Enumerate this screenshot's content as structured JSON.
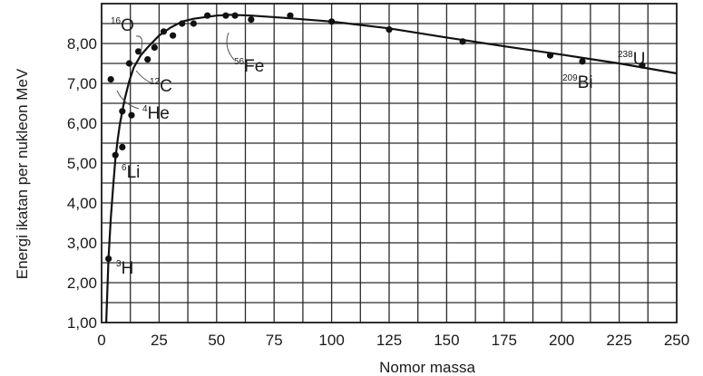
{
  "chart_data": {
    "type": "scatter",
    "title": "",
    "xlabel": "Nomor massa",
    "ylabel": "Energi ikatan per nukleon MeV",
    "xlim": [
      0,
      250
    ],
    "ylim": [
      1,
      9
    ],
    "grid": true,
    "x_ticks": [
      "0",
      "25",
      "50",
      "75",
      "100",
      "125",
      "150",
      "175",
      "200",
      "225",
      "250"
    ],
    "y_ticks": [
      "1,00",
      "2,00",
      "3,00",
      "4,00",
      "5,00",
      "6,00",
      "7,00",
      "8,00"
    ],
    "series": [
      {
        "points": [
          {
            "x": 3,
            "y": 2.6
          },
          {
            "x": 6,
            "y": 5.2
          },
          {
            "x": 9,
            "y": 5.4
          },
          {
            "x": 4,
            "y": 7.1
          },
          {
            "x": 9,
            "y": 6.3
          },
          {
            "x": 13,
            "y": 6.2
          },
          {
            "x": 12,
            "y": 7.5
          },
          {
            "x": 16,
            "y": 7.8
          },
          {
            "x": 20,
            "y": 7.6
          },
          {
            "x": 23,
            "y": 7.9
          },
          {
            "x": 27,
            "y": 8.3
          },
          {
            "x": 31,
            "y": 8.2
          },
          {
            "x": 35,
            "y": 8.5
          },
          {
            "x": 40,
            "y": 8.5
          },
          {
            "x": 46,
            "y": 8.7
          },
          {
            "x": 54,
            "y": 8.7
          },
          {
            "x": 58,
            "y": 8.7
          },
          {
            "x": 65,
            "y": 8.6
          },
          {
            "x": 82,
            "y": 8.7
          },
          {
            "x": 100,
            "y": 8.55
          },
          {
            "x": 125,
            "y": 8.35
          },
          {
            "x": 157,
            "y": 8.05
          },
          {
            "x": 195,
            "y": 7.7
          },
          {
            "x": 209,
            "y": 7.55
          },
          {
            "x": 235,
            "y": 7.45
          }
        ]
      }
    ],
    "curve": [
      [
        2,
        1.0
      ],
      [
        3,
        2.6
      ],
      [
        4,
        3.6
      ],
      [
        5,
        4.4
      ],
      [
        6,
        5.1
      ],
      [
        7,
        5.6
      ],
      [
        8,
        6.0
      ],
      [
        10,
        6.6
      ],
      [
        12,
        7.05
      ],
      [
        14,
        7.4
      ],
      [
        17,
        7.7
      ],
      [
        20,
        7.9
      ],
      [
        25,
        8.2
      ],
      [
        30,
        8.4
      ],
      [
        35,
        8.55
      ],
      [
        40,
        8.62
      ],
      [
        50,
        8.7
      ],
      [
        56,
        8.72
      ],
      [
        65,
        8.7
      ],
      [
        80,
        8.64
      ],
      [
        100,
        8.55
      ],
      [
        125,
        8.38
      ],
      [
        150,
        8.15
      ],
      [
        175,
        7.93
      ],
      [
        200,
        7.72
      ],
      [
        225,
        7.5
      ],
      [
        250,
        7.25
      ]
    ],
    "annotations": [
      {
        "mass": "16",
        "symbol": "O"
      },
      {
        "mass": "12",
        "symbol": "C"
      },
      {
        "mass": "4",
        "symbol": "He"
      },
      {
        "mass": "6",
        "symbol": "Li"
      },
      {
        "mass": "3",
        "symbol": "H"
      },
      {
        "mass": "56",
        "symbol": "Fe"
      },
      {
        "mass": "209",
        "symbol": "Bi"
      },
      {
        "mass": "238",
        "symbol": "U"
      }
    ]
  }
}
